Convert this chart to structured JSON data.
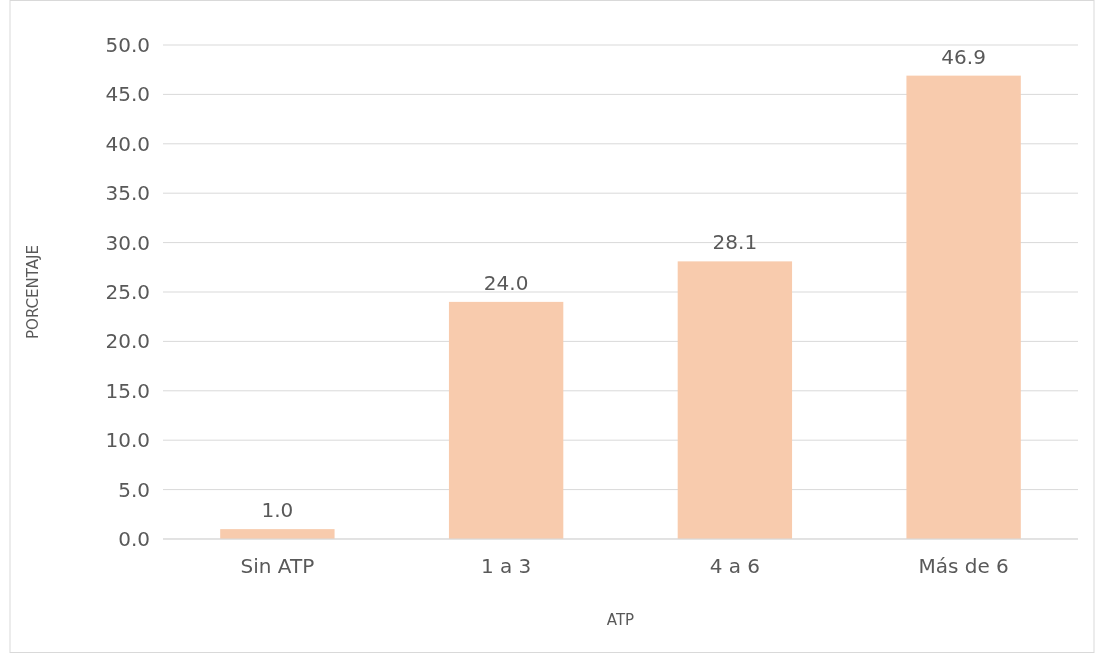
{
  "chart_data": {
    "type": "bar",
    "xlabel": "ATP",
    "ylabel": "PORCENTAJE",
    "categories": [
      "Sin ATP",
      "1 a 3",
      "4 a 6",
      "Más de 6"
    ],
    "values": [
      1.0,
      24.0,
      28.1,
      46.9
    ],
    "color": "#f8cbad",
    "ylim": [
      0,
      50
    ],
    "yticks": [
      {
        "value": 0,
        "label": "0.0"
      },
      {
        "value": 5,
        "label": "5.0"
      },
      {
        "value": 10,
        "label": "10.0"
      },
      {
        "value": 15,
        "label": "15.0"
      },
      {
        "value": 20,
        "label": "20.0"
      },
      {
        "value": 25,
        "label": "25.0"
      },
      {
        "value": 30,
        "label": "30.0"
      },
      {
        "value": 35,
        "label": "35.0"
      },
      {
        "value": 40,
        "label": "40.0"
      },
      {
        "value": 45,
        "label": "45.0"
      },
      {
        "value": 50,
        "label": "50.0"
      }
    ],
    "value_labels": [
      "1.0",
      "24.0",
      "28.1",
      "46.9"
    ],
    "grid": "y"
  }
}
